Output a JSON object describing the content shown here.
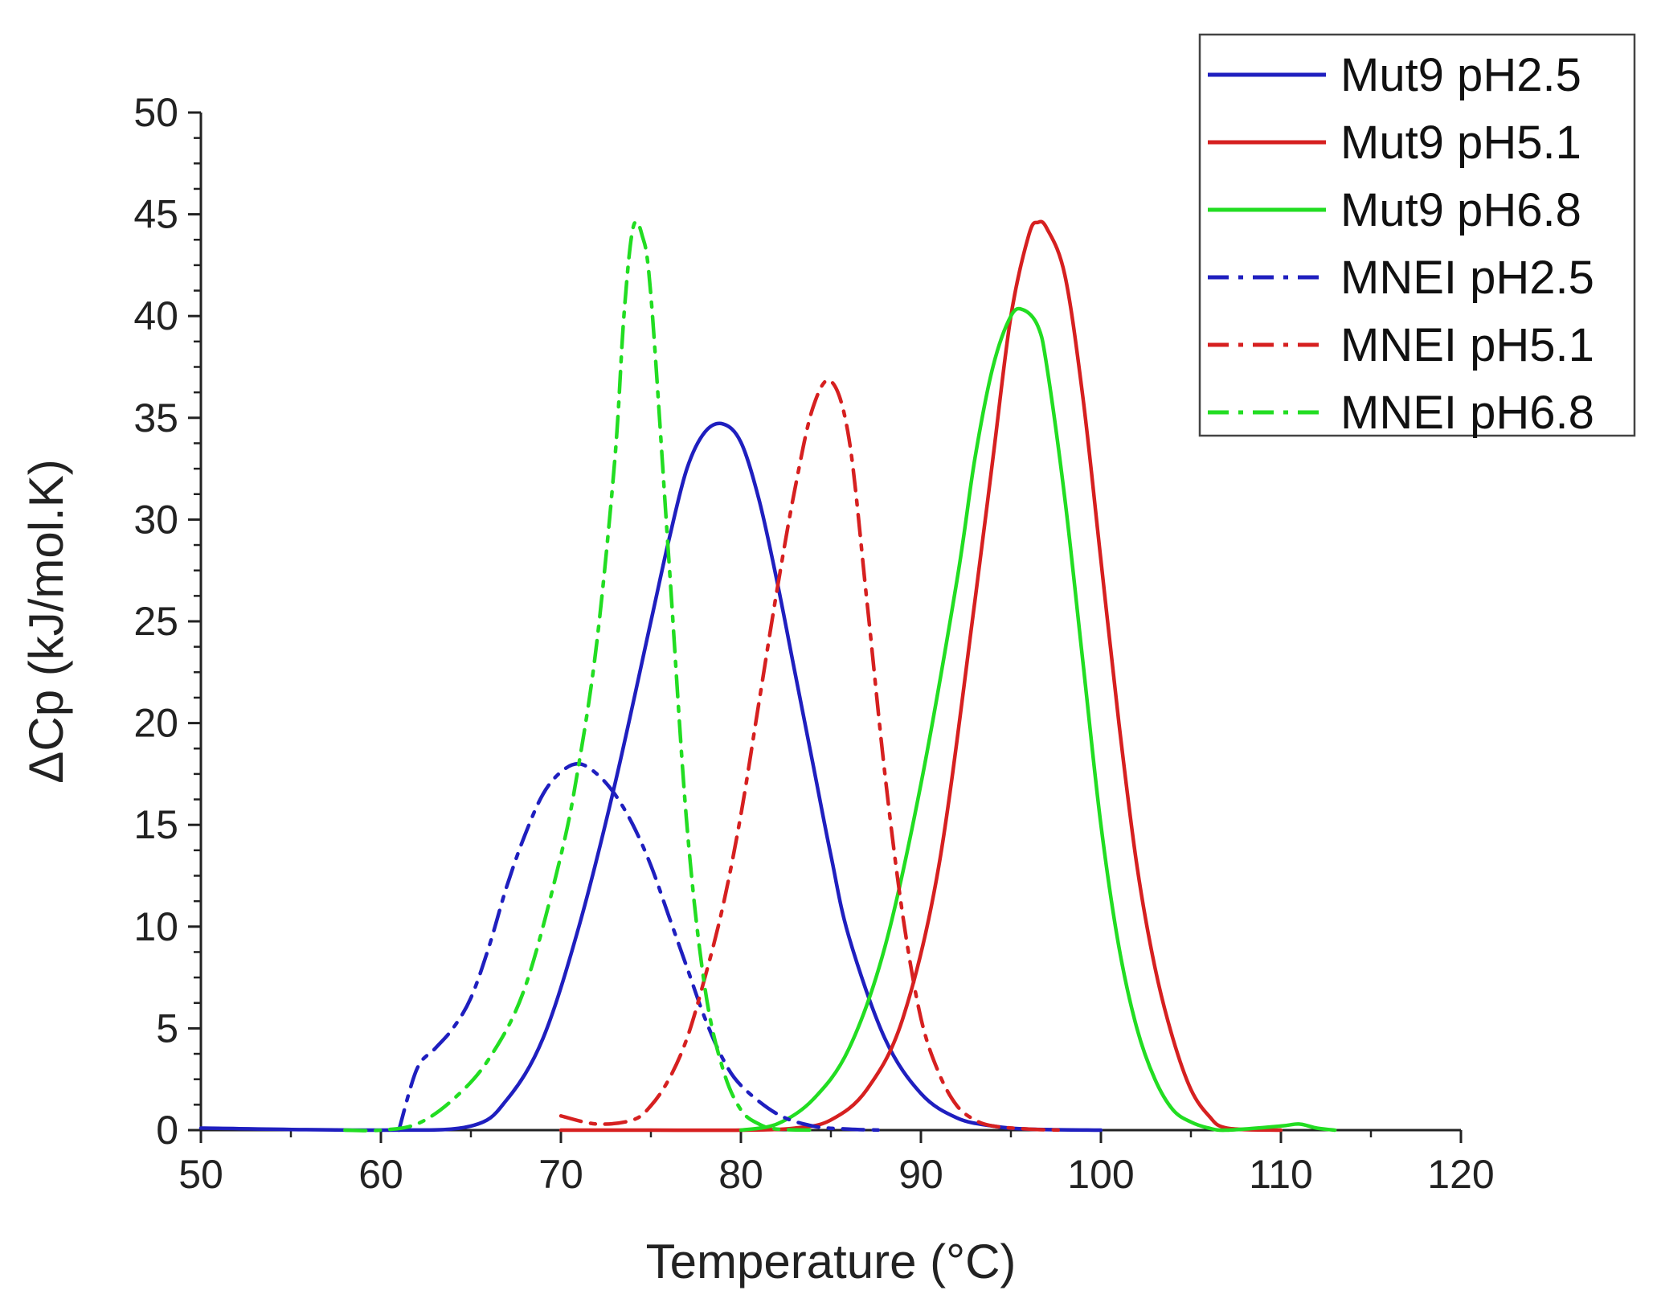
{
  "chart_data": {
    "type": "line",
    "title": "",
    "xlabel": "Temperature (°C)",
    "ylabel": "ΔCp  (kJ/mol.K)",
    "xlim": [
      50,
      120
    ],
    "ylim": [
      0,
      50
    ],
    "xticks": [
      50,
      60,
      70,
      80,
      90,
      100,
      110,
      120
    ],
    "yticks": [
      0,
      5,
      10,
      15,
      20,
      25,
      30,
      35,
      40,
      45,
      50
    ],
    "grid": false,
    "legend_position": "top-right",
    "series": [
      {
        "name": "Mut9 pH2.5",
        "color": "#1f1fbf",
        "dash": "solid",
        "x": [
          50,
          60,
          65,
          67,
          69,
          71,
          73,
          75,
          76,
          77,
          78,
          79,
          80,
          81,
          82,
          83,
          84,
          85,
          86,
          88,
          90,
          92,
          94,
          96,
          100
        ],
        "y": [
          0.1,
          0,
          0.2,
          1.5,
          4.5,
          10,
          17,
          25,
          29,
          32.5,
          34.3,
          34.7,
          33.8,
          31,
          27,
          22.5,
          18,
          13.5,
          9.5,
          4.5,
          1.8,
          0.6,
          0.2,
          0.05,
          0
        ]
      },
      {
        "name": "Mut9 pH5.1",
        "color": "#d62020",
        "dash": "solid",
        "x": [
          70,
          75,
          80,
          83,
          85,
          87,
          89,
          91,
          93,
          94,
          95,
          96,
          96.5,
          97,
          98,
          99,
          100,
          101,
          102,
          103,
          104,
          105,
          106,
          107,
          110
        ],
        "y": [
          0,
          0,
          0,
          0.1,
          0.5,
          2,
          5.5,
          13,
          26,
          33,
          40,
          44,
          44.6,
          44.3,
          42,
          36,
          28,
          20,
          13,
          8,
          4.5,
          2,
          0.7,
          0.1,
          0
        ]
      },
      {
        "name": "Mut9 pH6.8",
        "color": "#22dd22",
        "dash": "solid",
        "x": [
          80,
          82,
          84,
          86,
          88,
          90,
          92,
          93,
          94,
          95,
          95.7,
          96.5,
          97,
          98,
          99,
          100,
          101,
          102,
          103,
          104,
          105,
          106,
          107,
          110,
          111,
          112,
          113
        ],
        "y": [
          0,
          0.3,
          1.5,
          4,
          9,
          17,
          27,
          33,
          37.5,
          40,
          40.3,
          39.5,
          37.5,
          31,
          23,
          15,
          9,
          5,
          2.5,
          1,
          0.4,
          0.1,
          0,
          0.2,
          0.3,
          0.1,
          0
        ]
      },
      {
        "name": "MNEI pH2.5",
        "color": "#1f1fbf",
        "dash": "dashdot",
        "x": [
          61,
          62,
          63,
          64,
          65,
          66,
          67,
          68,
          69,
          70,
          71,
          72,
          73,
          74,
          75,
          76,
          77,
          78,
          79,
          80,
          82,
          84,
          86,
          88
        ],
        "y": [
          0,
          3,
          4,
          5,
          6.5,
          9,
          12,
          14.5,
          16.5,
          17.6,
          18,
          17.5,
          16.5,
          15,
          13,
          10.5,
          8,
          5.5,
          3.5,
          2.2,
          0.8,
          0.2,
          0.05,
          0
        ]
      },
      {
        "name": "MNEI pH5.1",
        "color": "#d62020",
        "dash": "dashdot",
        "x": [
          70,
          72,
          74,
          75,
          76,
          77,
          78,
          79,
          80,
          81,
          82,
          83,
          84,
          85,
          86,
          87,
          88,
          89,
          90,
          91,
          92,
          93,
          94,
          96,
          98
        ],
        "y": [
          0.7,
          0.3,
          0.5,
          1.2,
          2.5,
          4.5,
          7.5,
          11,
          15.5,
          21,
          26.5,
          31.5,
          35.5,
          36.8,
          34,
          26,
          17.5,
          10.5,
          5.5,
          2.8,
          1.2,
          0.5,
          0.2,
          0.05,
          0
        ]
      },
      {
        "name": "MNEI pH6.8",
        "color": "#22dd22",
        "dash": "dashdot",
        "x": [
          58,
          60,
          62,
          64,
          66,
          68,
          70,
          71,
          72,
          73,
          73.5,
          74,
          74.5,
          75,
          76,
          77,
          78,
          79,
          80,
          81,
          82,
          84
        ],
        "y": [
          0,
          0,
          0.3,
          1.5,
          3.5,
          7,
          13.5,
          18,
          24,
          33,
          40,
          44.3,
          44,
          41,
          28,
          15,
          7,
          3,
          1,
          0.3,
          0.05,
          0
        ]
      }
    ]
  }
}
